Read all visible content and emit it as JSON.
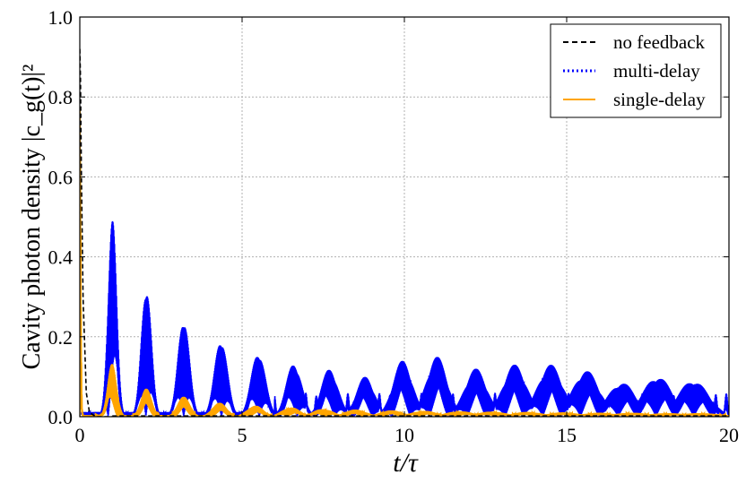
{
  "chart_data": {
    "type": "line",
    "xlabel": "t/τ",
    "ylabel": "Cavity photon density |c_g(t)|²",
    "xlim": [
      0,
      20
    ],
    "ylim": [
      0,
      1.0
    ],
    "x_ticks": [
      "0",
      "5",
      "10",
      "15",
      "20"
    ],
    "y_ticks": [
      "0.0",
      "0.2",
      "0.4",
      "0.6",
      "0.8",
      "1.0"
    ],
    "grid": true,
    "legend_position": "top-right",
    "series": [
      {
        "name": "no feedback",
        "style": "dashed",
        "color": "#000000",
        "x": [
          0.0,
          0.02,
          0.05,
          0.1,
          0.2,
          0.3,
          0.5,
          1.0
        ],
        "y": [
          0.92,
          0.85,
          0.6,
          0.3,
          0.06,
          0.01,
          0.0,
          0.0
        ]
      },
      {
        "name": "multi-delay",
        "style": "dotted",
        "color": "#0000ff",
        "peaks": [
          {
            "x": 1.0,
            "y": 0.51
          },
          {
            "x": 2.05,
            "y": 0.34
          },
          {
            "x": 3.2,
            "y": 0.255
          },
          {
            "x": 4.35,
            "y": 0.2
          },
          {
            "x": 5.5,
            "y": 0.165
          },
          {
            "x": 6.6,
            "y": 0.135
          },
          {
            "x": 7.7,
            "y": 0.12
          },
          {
            "x": 8.8,
            "y": 0.1
          },
          {
            "x": 9.95,
            "y": 0.14
          },
          {
            "x": 11.0,
            "y": 0.15
          },
          {
            "x": 12.2,
            "y": 0.12
          },
          {
            "x": 13.4,
            "y": 0.13
          },
          {
            "x": 14.5,
            "y": 0.13
          },
          {
            "x": 15.6,
            "y": 0.115
          },
          {
            "x": 16.7,
            "y": 0.085
          },
          {
            "x": 17.8,
            "y": 0.1
          },
          {
            "x": 18.9,
            "y": 0.09
          }
        ]
      },
      {
        "name": "single-delay",
        "style": "solid",
        "color": "#ffa500",
        "peaks": [
          {
            "x": 0.0,
            "y": 0.9
          },
          {
            "x": 1.0,
            "y": 0.135
          },
          {
            "x": 2.05,
            "y": 0.07
          },
          {
            "x": 3.2,
            "y": 0.05
          },
          {
            "x": 4.3,
            "y": 0.035
          },
          {
            "x": 5.4,
            "y": 0.028
          },
          {
            "x": 6.5,
            "y": 0.024
          },
          {
            "x": 7.5,
            "y": 0.02
          },
          {
            "x": 8.5,
            "y": 0.018
          },
          {
            "x": 9.6,
            "y": 0.016
          },
          {
            "x": 10.6,
            "y": 0.015
          },
          {
            "x": 11.7,
            "y": 0.014
          },
          {
            "x": 12.7,
            "y": 0.013
          },
          {
            "x": 13.8,
            "y": 0.012
          },
          {
            "x": 14.9,
            "y": 0.011
          },
          {
            "x": 16.0,
            "y": 0.01
          },
          {
            "x": 17.0,
            "y": 0.01
          },
          {
            "x": 18.1,
            "y": 0.009
          },
          {
            "x": 19.1,
            "y": 0.009
          }
        ]
      }
    ]
  }
}
